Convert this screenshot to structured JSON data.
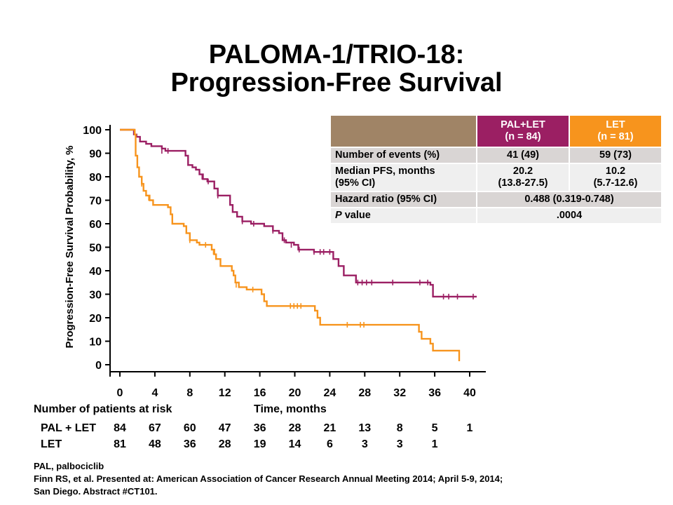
{
  "title_line1": "PALOMA-1/TRIO-18:",
  "title_line2": "Progression-Free Survival",
  "chart_data": {
    "type": "line",
    "xlabel": "Time, months",
    "ylabel": "Progression-Free Survival Probability, %",
    "xlim": [
      0,
      40
    ],
    "ylim": [
      0,
      100
    ],
    "xticks": [
      "0",
      "4",
      "8",
      "12",
      "16",
      "20",
      "24",
      "28",
      "32",
      "36",
      "40"
    ],
    "yticks": [
      "0",
      "10",
      "20",
      "30",
      "40",
      "50",
      "60",
      "70",
      "80",
      "90",
      "100"
    ],
    "grid": false,
    "series": [
      {
        "name": "PAL+LET",
        "color": "#9b1f63",
        "steps": [
          [
            0,
            100
          ],
          [
            1.5,
            100
          ],
          [
            1.6,
            98
          ],
          [
            1.9,
            97
          ],
          [
            2.3,
            95
          ],
          [
            3.0,
            94
          ],
          [
            3.6,
            93
          ],
          [
            4.8,
            92
          ],
          [
            5.2,
            91
          ],
          [
            7.5,
            89
          ],
          [
            7.8,
            85
          ],
          [
            8.3,
            84
          ],
          [
            8.7,
            83
          ],
          [
            9.1,
            81
          ],
          [
            9.5,
            79
          ],
          [
            10.0,
            78
          ],
          [
            10.8,
            75
          ],
          [
            11.2,
            72
          ],
          [
            12.6,
            68
          ],
          [
            12.9,
            65
          ],
          [
            13.4,
            63
          ],
          [
            14.0,
            61
          ],
          [
            15.0,
            60
          ],
          [
            16.5,
            59
          ],
          [
            17.5,
            57
          ],
          [
            18.2,
            56
          ],
          [
            18.6,
            53
          ],
          [
            19.0,
            52
          ],
          [
            19.9,
            51
          ],
          [
            20.4,
            49
          ],
          [
            22.2,
            48
          ],
          [
            24.4,
            45
          ],
          [
            25.0,
            42
          ],
          [
            25.6,
            38
          ],
          [
            27.0,
            35
          ],
          [
            35.2,
            35
          ],
          [
            35.5,
            34
          ],
          [
            35.8,
            29
          ],
          [
            40.8,
            29
          ]
        ],
        "censors": [
          [
            1.6,
            99
          ],
          [
            4.8,
            91
          ],
          [
            5.5,
            91
          ],
          [
            9.4,
            80
          ],
          [
            10.1,
            78
          ],
          [
            11.2,
            72
          ],
          [
            14.0,
            61
          ],
          [
            15.3,
            60
          ],
          [
            17.5,
            57
          ],
          [
            18.8,
            53
          ],
          [
            19.6,
            51
          ],
          [
            20.5,
            49
          ],
          [
            22.2,
            48
          ],
          [
            22.9,
            48
          ],
          [
            23.3,
            48
          ],
          [
            24.0,
            48
          ],
          [
            27.2,
            35
          ],
          [
            27.7,
            35
          ],
          [
            28.2,
            35
          ],
          [
            28.8,
            35
          ],
          [
            31.2,
            35
          ],
          [
            34.3,
            35
          ],
          [
            35.2,
            35
          ],
          [
            37.0,
            29
          ],
          [
            37.6,
            29
          ],
          [
            38.6,
            29
          ],
          [
            40.4,
            29
          ]
        ]
      },
      {
        "name": "LET",
        "color": "#f7941d",
        "steps": [
          [
            0,
            100
          ],
          [
            1.5,
            100
          ],
          [
            1.7,
            98
          ],
          [
            1.8,
            89
          ],
          [
            2.0,
            84
          ],
          [
            2.2,
            80
          ],
          [
            2.5,
            77
          ],
          [
            2.7,
            74
          ],
          [
            3.0,
            72
          ],
          [
            3.4,
            70
          ],
          [
            3.8,
            68
          ],
          [
            5.5,
            67
          ],
          [
            5.8,
            64
          ],
          [
            6.0,
            60
          ],
          [
            7.3,
            59
          ],
          [
            7.6,
            56
          ],
          [
            8.0,
            53
          ],
          [
            8.8,
            52
          ],
          [
            9.1,
            51
          ],
          [
            10.2,
            51
          ],
          [
            10.5,
            49
          ],
          [
            10.8,
            47
          ],
          [
            11.0,
            45
          ],
          [
            11.5,
            42
          ],
          [
            12.8,
            40
          ],
          [
            13.0,
            38
          ],
          [
            13.2,
            35
          ],
          [
            13.6,
            33
          ],
          [
            14.5,
            32
          ],
          [
            16.2,
            30
          ],
          [
            16.5,
            27
          ],
          [
            16.8,
            25
          ],
          [
            22.0,
            25
          ],
          [
            22.3,
            23
          ],
          [
            22.6,
            20
          ],
          [
            22.9,
            17
          ],
          [
            34.0,
            17
          ],
          [
            34.2,
            14
          ],
          [
            34.5,
            11
          ],
          [
            35.5,
            9
          ],
          [
            35.8,
            6
          ],
          [
            38.8,
            6
          ],
          [
            38.8,
            1.5
          ]
        ],
        "censors": [
          [
            2.5,
            77
          ],
          [
            3.3,
            71
          ],
          [
            8.0,
            53
          ],
          [
            9.8,
            51
          ],
          [
            10.7,
            48
          ],
          [
            13.3,
            34
          ],
          [
            15.2,
            32
          ],
          [
            19.5,
            25
          ],
          [
            19.9,
            25
          ],
          [
            20.3,
            25
          ],
          [
            20.7,
            25
          ],
          [
            26.0,
            17
          ],
          [
            27.5,
            17
          ],
          [
            27.9,
            17
          ]
        ]
      }
    ],
    "table": {
      "col_headers": [
        [
          "PAL+LET",
          "(n = 84)"
        ],
        [
          "LET",
          "(n = 81)"
        ]
      ],
      "rows": [
        {
          "label": [
            "Number of events (%)"
          ],
          "pal": [
            "41 (49)"
          ],
          "let": [
            "59 (73)"
          ]
        },
        {
          "label": [
            "Median PFS, months",
            "(95% CI)"
          ],
          "pal": [
            "20.2",
            "(13.8-27.5)"
          ],
          "let": [
            "10.2",
            "(5.7-12.6)"
          ]
        },
        {
          "label": [
            "Hazard ratio (95% CI)"
          ],
          "combined": "0.488 (0.319-0.748)"
        },
        {
          "label_italic": "P",
          "label_rest": " value",
          "combined": ".0004"
        }
      ]
    },
    "risk_table": {
      "title": "Number of patients at risk",
      "times": [
        0,
        4,
        8,
        12,
        16,
        20,
        24,
        28,
        32,
        36,
        40
      ],
      "arms": [
        {
          "label": "PAL + LET",
          "counts": [
            "84",
            "67",
            "60",
            "47",
            "36",
            "28",
            "21",
            "13",
            "8",
            "5",
            "1"
          ]
        },
        {
          "label": "LET",
          "counts": [
            "81",
            "48",
            "36",
            "28",
            "19",
            "14",
            "6",
            "3",
            "3",
            "1",
            ""
          ]
        }
      ]
    }
  },
  "footnotes": [
    "PAL, palbociclib",
    "Finn RS, et al.  Presented at: American Association of Cancer Research Annual Meeting 2014; April 5-9, 2014;",
    "San Diego. Abstract #CT101."
  ]
}
